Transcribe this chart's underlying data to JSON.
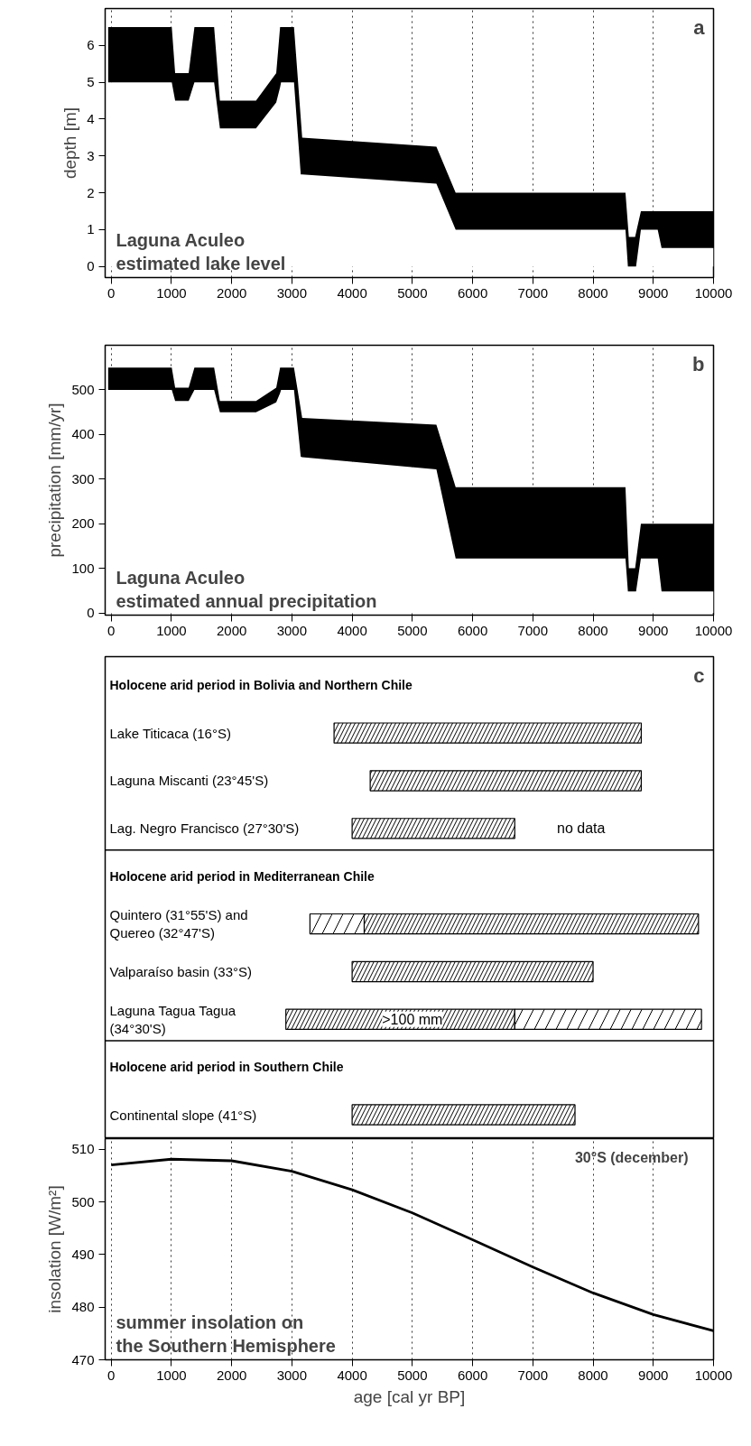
{
  "chart_data": [
    {
      "type": "area",
      "title": "Laguna Aculeo\nestimated lake level",
      "ylabel": "depth [m]",
      "annotations": [
        "a"
      ],
      "x": [
        -50,
        1006,
        1062,
        1286,
        1382,
        1709,
        1805,
        2404,
        2740,
        2804,
        2820,
        3035,
        3147,
        3171,
        5399,
        5719,
        8538,
        8578,
        8594,
        8698,
        8714,
        8794,
        9073,
        9137,
        10000
      ],
      "stacked": true,
      "series": [
        {
          "color": "#ffffff",
          "values": [
            5.0,
            5.0,
            4.5,
            4.5,
            5.0,
            5.0,
            3.75,
            3.75,
            4.45,
            4.86,
            5.0,
            5.0,
            2.5,
            2.5,
            2.25,
            1.0,
            1.0,
            0.0,
            0.0,
            0.0,
            0.0,
            1.0,
            1.0,
            0.5,
            0.5
          ]
        },
        {
          "color": "#000000",
          "values": [
            1.5,
            1.5,
            0.75,
            0.75,
            1.5,
            1.5,
            0.75,
            0.75,
            0.8,
            1.64,
            1.5,
            1.5,
            1.53,
            1.0,
            1.0,
            1.0,
            1.0,
            1.14,
            0.8,
            0.8,
            0.92,
            0.5,
            0.5,
            1.0,
            1.0
          ]
        }
      ],
      "xlim": [
        -100,
        10000
      ],
      "ylim": [
        -0.3,
        7.0
      ],
      "xticks": [
        0,
        1000,
        2000,
        3000,
        4000,
        5000,
        6000,
        7000,
        8000,
        9000,
        10000
      ],
      "yticks": [
        0,
        1,
        2,
        3,
        4,
        5,
        6
      ],
      "grid": "x"
    },
    {
      "type": "area",
      "title": "Laguna Aculeo\nestimated annual precipitation",
      "ylabel": "precipitation [mm/yr]",
      "annotations": [
        "b"
      ],
      "x": [
        -50,
        1006,
        1062,
        1286,
        1382,
        1709,
        1805,
        2404,
        2740,
        2804,
        2820,
        3035,
        3147,
        3171,
        5399,
        5719,
        8538,
        8578,
        8594,
        8698,
        8714,
        8794,
        9073,
        9137,
        10000
      ],
      "stacked": true,
      "series": [
        {
          "color": "#ffffff",
          "values": [
            500,
            500,
            475,
            475,
            500,
            500,
            450,
            450,
            472,
            493,
            500,
            500,
            350,
            349,
            322,
            122,
            122,
            48,
            48,
            48,
            48,
            122,
            122,
            48,
            48
          ]
        },
        {
          "color": "#000000",
          "values": [
            50,
            50,
            30,
            30,
            50,
            50,
            25,
            25,
            33,
            57,
            50,
            50,
            107,
            88,
            100,
            160,
            160,
            104,
            52,
            52,
            69,
            78,
            78,
            152,
            152
          ]
        }
      ],
      "xlim": [
        -100,
        10000
      ],
      "ylim": [
        -5,
        600
      ],
      "xticks": [
        0,
        1000,
        2000,
        3000,
        4000,
        5000,
        6000,
        7000,
        8000,
        9000,
        10000
      ],
      "yticks": [
        0,
        100,
        200,
        300,
        400,
        500
      ],
      "grid": "x"
    },
    {
      "type": "bar",
      "orientation": "horizontal",
      "annotations": [
        "c",
        "no data",
        ">100 mm"
      ],
      "categories": [
        "Holocene arid period in Bolivia and Northern Chile",
        "Lake Titicaca (16°S)",
        "Laguna Miscanti (23°45'S)",
        "Lag. Negro Francisco (27°30'S)",
        "Holocene arid period in Mediterranean Chile",
        "Quintero (31°55'S) and\nQuereo (32°47'S)",
        "Valparaíso basin (33°S)",
        "Laguna Tagua Tagua\n(34°30'S)",
        "Holocene arid period in Southern Chile",
        "Continental slope  (41°S)"
      ],
      "series": [
        {
          "color": "#000000",
          "base": [
            null,
            3700,
            4300,
            4000,
            null,
            4200,
            4000,
            2900,
            null,
            4000
          ],
          "values": [
            null,
            5100,
            4500,
            2700,
            null,
            5550,
            4000,
            3800,
            null,
            3700
          ]
        },
        {
          "color": "#000000",
          "base": [
            null,
            null,
            null,
            null,
            null,
            3300,
            null,
            6700,
            null,
            null
          ],
          "values": [
            null,
            null,
            null,
            null,
            null,
            900,
            null,
            3100,
            null,
            null
          ]
        }
      ],
      "xlim": [
        -100,
        10000
      ]
    },
    {
      "type": "line",
      "title": "summer insolation on\nthe Southern Hemisphere",
      "xlabel": "age [cal yr BP]",
      "ylabel": "insolation [W/m²]",
      "x": [
        0,
        1000,
        2000,
        3000,
        4000,
        5000,
        6000,
        7000,
        8000,
        9000,
        10000
      ],
      "series": [
        {
          "name": "30°S (december)",
          "color": "#000000",
          "values": [
            507.0,
            508.1,
            507.8,
            505.8,
            502.3,
            497.9,
            492.8,
            487.6,
            482.7,
            478.6,
            475.5
          ]
        }
      ],
      "xlim": [
        -100,
        10000
      ],
      "ylim": [
        470,
        512
      ],
      "xticks": [
        0,
        1000,
        2000,
        3000,
        4000,
        5000,
        6000,
        7000,
        8000,
        9000,
        10000
      ],
      "yticks": [
        470,
        480,
        490,
        500,
        510
      ],
      "grid": "x",
      "line_style": "solid"
    }
  ]
}
